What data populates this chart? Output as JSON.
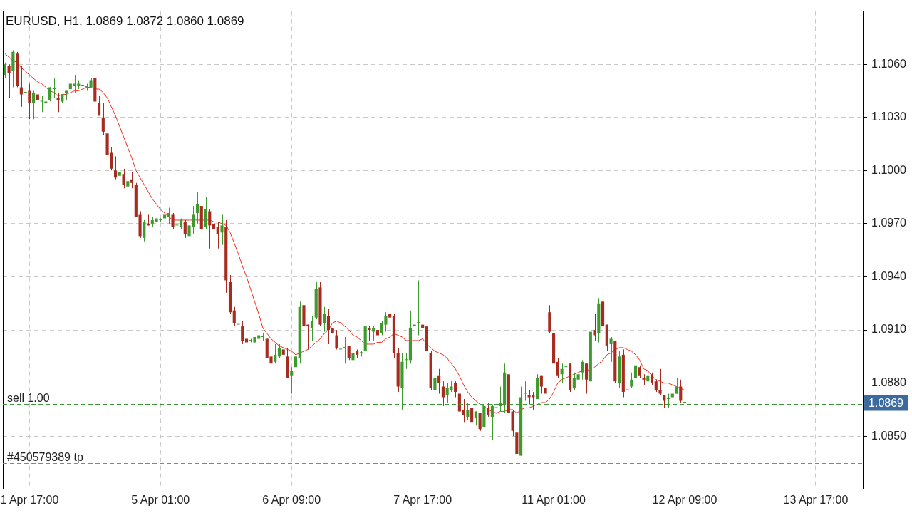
{
  "chart_data": {
    "type": "candlestick",
    "title": "EURUSD, H1, 1.0869 1.0872 1.0860 1.0869",
    "categories": [
      null,
      null,
      null,
      null,
      null,
      null,
      "1 Apr 17:00",
      null,
      null,
      null,
      null,
      null,
      null,
      null,
      null,
      null,
      null,
      null,
      null,
      null,
      null,
      null,
      null,
      null,
      null,
      null,
      null,
      null,
      null,
      null,
      null,
      null,
      null,
      null,
      null,
      null,
      null,
      null,
      "5 Apr 01:00",
      null,
      null,
      null,
      null,
      null,
      null,
      null,
      null,
      null,
      null,
      null,
      null,
      null,
      null,
      null,
      null,
      null,
      null,
      null,
      null,
      null,
      null,
      null,
      null,
      null,
      null,
      null,
      null,
      null,
      null,
      null,
      "6 Apr 09:00",
      null,
      null,
      null,
      null,
      null,
      null,
      null,
      null,
      null,
      null,
      null,
      null,
      null,
      null,
      null,
      null,
      null,
      null,
      null,
      null,
      null,
      null,
      null,
      null,
      null,
      null,
      null,
      null,
      null,
      null,
      null,
      "7 Apr 17:00",
      null,
      null,
      null,
      null,
      null,
      null,
      null,
      null,
      null,
      null,
      null,
      null,
      null,
      null,
      null,
      null,
      null,
      null,
      null,
      null,
      null,
      null,
      null,
      null,
      null,
      null,
      null,
      null,
      null,
      null,
      null,
      "11 Apr 01:00",
      null,
      null,
      null,
      null,
      null,
      null,
      null,
      null,
      null,
      null,
      null,
      null,
      null,
      null,
      null,
      null,
      null,
      null,
      null,
      null,
      null,
      null,
      null,
      null,
      null,
      null,
      null,
      null,
      null,
      null,
      null,
      "12 Apr 09:00",
      null,
      null,
      null,
      null,
      null,
      null,
      null,
      null,
      null,
      null,
      null,
      null,
      null,
      null,
      null,
      null,
      null,
      null,
      null,
      null,
      null,
      null,
      null,
      null,
      null,
      null,
      null,
      null,
      null,
      null,
      null,
      "13 Apr 17:00",
      null,
      null,
      null,
      null,
      null,
      null,
      null,
      null,
      null,
      null,
      null
    ],
    "ohlc": [
      [
        1.1054,
        1.1061,
        1.1052,
        1.106
      ],
      [
        1.1059,
        1.106,
        1.1041,
        1.1055
      ],
      [
        1.1056,
        1.1068,
        1.1047,
        1.1067
      ],
      [
        1.1066,
        1.1067,
        1.1047,
        1.1048
      ],
      [
        1.1047,
        1.1059,
        1.1036,
        1.1043
      ],
      [
        1.1044,
        1.1053,
        1.1038,
        1.1044
      ],
      [
        1.1045,
        1.1049,
        1.1029,
        1.1038
      ],
      [
        1.1038,
        1.1045,
        1.1029,
        1.1044
      ],
      [
        1.1043,
        1.1048,
        1.1038,
        1.104
      ],
      [
        1.1039,
        1.1042,
        1.1033,
        1.1039
      ],
      [
        1.1038,
        1.1048,
        1.1038,
        1.1039
      ],
      [
        1.104,
        1.1047,
        1.1039,
        1.1047
      ],
      [
        1.1046,
        1.1052,
        1.1041,
        1.1046
      ],
      [
        1.1041,
        1.1044,
        1.1033,
        1.104
      ],
      [
        1.1039,
        1.1043,
        1.1038,
        1.1043
      ],
      [
        1.1044,
        1.1045,
        1.104,
        1.1045
      ],
      [
        1.1046,
        1.1053,
        1.1044,
        1.1049
      ],
      [
        1.1048,
        1.1054,
        1.1044,
        1.1049
      ],
      [
        1.1048,
        1.1051,
        1.1046,
        1.1049
      ],
      [
        1.1048,
        1.1053,
        1.1047,
        1.1048
      ],
      [
        1.1047,
        1.1049,
        1.1045,
        1.1048
      ],
      [
        1.1047,
        1.1052,
        1.1047,
        1.1051
      ],
      [
        1.1052,
        1.1054,
        1.1036,
        1.1039
      ],
      [
        1.1038,
        1.1042,
        1.1031,
        1.1031
      ],
      [
        1.103,
        1.1038,
        1.102,
        1.1022
      ],
      [
        1.1021,
        1.1032,
        1.1008,
        1.1009
      ],
      [
        1.101,
        1.1013,
        1.1,
        1.1001
      ],
      [
        1.1,
        1.1008,
        1.0995,
        1.0996
      ],
      [
        1.0997,
        1.1009,
        1.0995,
        1.0999
      ],
      [
        1.0998,
        1.1001,
        1.099,
        1.0992
      ],
      [
        1.0991,
        1.0997,
        1.0979,
        1.0994
      ],
      [
        1.0995,
        1.0999,
        1.099,
        1.0993
      ],
      [
        1.0992,
        1.0993,
        1.0974,
        1.0974
      ],
      [
        1.0975,
        1.0977,
        1.0962,
        1.0963
      ],
      [
        1.0962,
        1.0972,
        1.096,
        1.0971
      ],
      [
        1.097,
        1.0975,
        1.0969,
        1.0969
      ],
      [
        1.097,
        1.0974,
        1.0968,
        1.0972
      ],
      [
        1.0971,
        1.0974,
        1.0971,
        1.0973
      ],
      [
        1.0972,
        1.0973,
        1.0971,
        1.0972
      ],
      [
        1.0973,
        1.0976,
        1.097,
        1.0975
      ],
      [
        1.0974,
        1.0979,
        1.097,
        1.0976
      ],
      [
        1.0975,
        1.0976,
        1.0967,
        1.0968
      ],
      [
        1.0969,
        1.0973,
        1.0965,
        1.0969
      ],
      [
        1.0968,
        1.0973,
        1.0967,
        1.0972
      ],
      [
        1.0971,
        1.0972,
        1.0962,
        1.0964
      ],
      [
        1.0963,
        1.0972,
        1.0962,
        1.0969
      ],
      [
        1.0968,
        1.098,
        1.0964,
        1.0975
      ],
      [
        1.0976,
        1.0988,
        1.097,
        1.0981
      ],
      [
        1.098,
        1.0981,
        1.0962,
        1.0967
      ],
      [
        1.0968,
        1.0985,
        1.0967,
        1.0978
      ],
      [
        1.0977,
        1.0978,
        1.0956,
        1.0969
      ],
      [
        1.097,
        1.0977,
        1.0963,
        1.0967
      ],
      [
        1.0968,
        1.0971,
        1.0956,
        1.0964
      ],
      [
        1.0965,
        1.0975,
        1.0958,
        1.0969
      ],
      [
        1.0968,
        1.0972,
        1.0931,
        1.0938
      ],
      [
        1.0937,
        1.0941,
        1.0919,
        1.092
      ],
      [
        1.0921,
        1.0923,
        1.0912,
        1.0914
      ],
      [
        1.0913,
        1.0921,
        1.0911,
        1.0913
      ],
      [
        1.0912,
        1.0915,
        1.0902,
        1.0904
      ],
      [
        1.0905,
        1.0905,
        1.0899,
        1.0903
      ],
      [
        1.0904,
        1.0905,
        1.0903,
        1.0904
      ],
      [
        1.0903,
        1.0906,
        1.0903,
        1.0906
      ],
      [
        1.0905,
        1.0908,
        1.0904,
        1.0907
      ],
      [
        1.0906,
        1.0908,
        1.0904,
        1.0906
      ],
      [
        1.0905,
        1.0905,
        1.0894,
        1.0894
      ],
      [
        1.0895,
        1.0896,
        1.089,
        1.0891
      ],
      [
        1.0892,
        1.0902,
        1.0891,
        1.0896
      ],
      [
        1.0895,
        1.0902,
        1.0894,
        1.09
      ],
      [
        1.0899,
        1.09,
        1.0893,
        1.0896
      ],
      [
        1.0895,
        1.09,
        1.0883,
        1.0883
      ],
      [
        1.0884,
        1.0889,
        1.0874,
        1.0887
      ],
      [
        1.0889,
        1.0902,
        1.0883,
        1.0895
      ],
      [
        1.0894,
        1.0926,
        1.0891,
        1.0923
      ],
      [
        1.0924,
        1.0925,
        1.0906,
        1.0912
      ],
      [
        1.0913,
        1.0913,
        1.0899,
        1.0912
      ],
      [
        1.0911,
        1.0918,
        1.0904,
        1.0915
      ],
      [
        1.0917,
        1.0937,
        1.0916,
        1.0933
      ],
      [
        1.0934,
        1.0937,
        1.0912,
        1.0913
      ],
      [
        1.0914,
        1.0923,
        1.0909,
        1.0919
      ],
      [
        1.0918,
        1.0922,
        1.0902,
        1.091
      ],
      [
        1.0911,
        1.0914,
        1.0902,
        1.0908
      ],
      [
        1.0907,
        1.091,
        1.0899,
        1.09
      ],
      [
        1.0899,
        1.0927,
        1.0879,
        1.0899
      ],
      [
        1.09,
        1.0906,
        1.0891,
        1.09
      ],
      [
        1.0901,
        1.0901,
        1.0893,
        1.0894
      ],
      [
        1.0893,
        1.0899,
        1.0891,
        1.0897
      ],
      [
        1.0898,
        1.0899,
        1.0894,
        1.0896
      ],
      [
        1.0897,
        1.0898,
        1.0895,
        1.0897
      ],
      [
        1.0898,
        1.0912,
        1.0896,
        1.0912
      ],
      [
        1.0911,
        1.0912,
        1.0904,
        1.091
      ],
      [
        1.0909,
        1.0912,
        1.0904,
        1.0911
      ],
      [
        1.091,
        1.0912,
        1.0905,
        1.0907
      ],
      [
        1.0908,
        1.0915,
        1.0907,
        1.0914
      ],
      [
        1.0913,
        1.092,
        1.0909,
        1.0918
      ],
      [
        1.0919,
        1.0934,
        1.0912,
        1.0917
      ],
      [
        1.0918,
        1.0919,
        1.0894,
        1.0897
      ],
      [
        1.0897,
        1.09,
        1.0875,
        1.0878
      ],
      [
        1.0877,
        1.0897,
        1.0865,
        1.0892
      ],
      [
        1.0893,
        1.0897,
        1.0888,
        1.0893
      ],
      [
        1.0893,
        1.0921,
        1.0891,
        1.0911
      ],
      [
        1.0912,
        1.0926,
        1.0908,
        1.0913
      ],
      [
        1.0914,
        1.0938,
        1.0907,
        1.0914
      ],
      [
        1.0913,
        1.0923,
        1.0895,
        1.0911
      ],
      [
        1.0912,
        1.0915,
        1.0895,
        1.0898
      ],
      [
        1.0897,
        1.0898,
        1.0876,
        1.0877
      ],
      [
        1.0876,
        1.0892,
        1.0875,
        1.0883
      ],
      [
        1.0884,
        1.0888,
        1.0874,
        1.088
      ],
      [
        1.0878,
        1.0881,
        1.0867,
        1.0872
      ],
      [
        1.0873,
        1.088,
        1.0869,
        1.0877
      ],
      [
        1.0876,
        1.0881,
        1.0875,
        1.0878
      ],
      [
        1.088,
        1.0881,
        1.0872,
        1.0875
      ],
      [
        1.0874,
        1.0875,
        1.086,
        1.0864
      ],
      [
        1.0865,
        1.0871,
        1.0858,
        1.0862
      ],
      [
        1.0861,
        1.0869,
        1.0859,
        1.0865
      ],
      [
        1.0866,
        1.0868,
        1.0857,
        1.0858
      ],
      [
        1.086,
        1.0864,
        1.0856,
        1.0864
      ],
      [
        1.0863,
        1.0863,
        1.0853,
        1.0854
      ],
      [
        1.0855,
        1.0867,
        1.0855,
        1.0867
      ],
      [
        1.0866,
        1.0869,
        1.0861,
        1.0862
      ],
      [
        1.0861,
        1.0868,
        1.0848,
        1.0867
      ],
      [
        1.0866,
        1.0878,
        1.086,
        1.0866
      ],
      [
        1.0867,
        1.0878,
        1.0864,
        1.0869
      ],
      [
        1.0868,
        1.0891,
        1.0863,
        1.0886
      ],
      [
        1.0885,
        1.0885,
        1.0859,
        1.0863
      ],
      [
        1.0864,
        1.0865,
        1.085,
        1.0853
      ],
      [
        1.0852,
        1.0857,
        1.0836,
        1.084
      ],
      [
        1.0839,
        1.0878,
        1.0839,
        1.0872
      ],
      [
        1.0874,
        1.0881,
        1.087,
        1.0874
      ],
      [
        1.0873,
        1.0876,
        1.0868,
        1.0872
      ],
      [
        1.0873,
        1.0875,
        1.0865,
        1.0872
      ],
      [
        1.0871,
        1.0885,
        1.0871,
        1.0883
      ],
      [
        1.0884,
        1.0884,
        1.0874,
        1.0878
      ],
      [
        1.0877,
        1.0879,
        1.0873,
        1.0874
      ],
      [
        1.092,
        1.0924,
        1.0908,
        1.0909
      ],
      [
        1.0908,
        1.0912,
        1.0886,
        1.0891
      ],
      [
        1.0892,
        1.0894,
        1.0883,
        1.0884
      ],
      [
        1.0885,
        1.0891,
        1.088,
        1.0888
      ],
      [
        1.0889,
        1.0893,
        1.0885,
        1.0889
      ],
      [
        1.0891,
        1.0891,
        1.0875,
        1.0876
      ],
      [
        1.0877,
        1.0886,
        1.0876,
        1.0883
      ],
      [
        1.0882,
        1.0887,
        1.0879,
        1.0885
      ],
      [
        1.0886,
        1.0893,
        1.0882,
        1.0892
      ],
      [
        1.0891,
        1.0891,
        1.0874,
        1.0882
      ],
      [
        1.0881,
        1.0913,
        1.0877,
        1.0909
      ],
      [
        1.091,
        1.0919,
        1.0904,
        1.0907
      ],
      [
        1.0908,
        1.0928,
        1.0903,
        1.0925
      ],
      [
        1.0926,
        1.0933,
        1.0905,
        1.0912
      ],
      [
        1.0913,
        1.0913,
        1.0898,
        1.0901
      ],
      [
        1.0902,
        1.0906,
        1.0892,
        1.0905
      ],
      [
        1.0904,
        1.0904,
        1.088,
        1.0881
      ],
      [
        1.088,
        1.0898,
        1.0877,
        1.0895
      ],
      [
        1.0896,
        1.0899,
        1.0872,
        1.0875
      ],
      [
        1.0876,
        1.0885,
        1.0872,
        1.0876
      ],
      [
        1.0878,
        1.0886,
        1.0877,
        1.0882
      ],
      [
        1.0883,
        1.0894,
        1.088,
        1.089
      ],
      [
        1.0889,
        1.089,
        1.0883,
        1.0884
      ],
      [
        1.0883,
        1.0885,
        1.0879,
        1.0882
      ],
      [
        1.0881,
        1.0886,
        1.088,
        1.0884
      ],
      [
        1.0885,
        1.0886,
        1.0879,
        1.088
      ],
      [
        1.0881,
        1.0882,
        1.0875,
        1.0876
      ],
      [
        1.0876,
        1.0888,
        1.0873,
        1.0874
      ],
      [
        1.0873,
        1.0873,
        1.0866,
        1.087
      ],
      [
        1.0871,
        1.0874,
        1.0866,
        1.0871
      ],
      [
        1.0872,
        1.0876,
        1.0871,
        1.0874
      ],
      [
        1.0874,
        1.0883,
        1.0874,
        1.0878
      ],
      [
        1.0878,
        1.0882,
        1.0869,
        1.087
      ],
      [
        1.0869,
        1.0872,
        1.086,
        1.0869
      ],
      null,
      null,
      null,
      null,
      null,
      null,
      null,
      null,
      null,
      null,
      null,
      null,
      null,
      null,
      null,
      null,
      null,
      null,
      null,
      null,
      null,
      null,
      null,
      null,
      null,
      null,
      null,
      null,
      null,
      null,
      null,
      null,
      null,
      null,
      null,
      null,
      null,
      null,
      null,
      null,
      null,
      null,
      null
    ],
    "colors": [
      "#3c9b2c",
      "#a82b1f",
      "#3c9b2c",
      "#a82b1f",
      "#a82b1f",
      "#3c9b2c",
      "#a82b1f",
      "#3c9b2c",
      "#a82b1f",
      "#3c9b2c",
      "#3c9b2c",
      "#3c9b2c",
      "#3c9b2c",
      "#a82b1f",
      "#3c9b2c",
      "#3c9b2c",
      "#3c9b2c",
      "#3c9b2c",
      "#3c9b2c",
      "#3c9b2c",
      "#3c9b2c",
      "#3c9b2c",
      "#a82b1f",
      "#a82b1f",
      "#a82b1f",
      "#a82b1f",
      "#a82b1f",
      "#a82b1f",
      "#3c9b2c",
      "#a82b1f",
      "#3c9b2c",
      "#a82b1f",
      "#a82b1f",
      "#a82b1f",
      "#3c9b2c",
      "#a82b1f",
      "#3c9b2c",
      "#3c9b2c",
      "#3c9b2c",
      "#3c9b2c",
      "#3c9b2c",
      "#a82b1f",
      "#3c9b2c",
      "#3c9b2c",
      "#a82b1f",
      "#3c9b2c",
      "#3c9b2c",
      "#3c9b2c",
      "#a82b1f",
      "#3c9b2c",
      "#a82b1f",
      "#a82b1f",
      "#a82b1f",
      "#3c9b2c",
      "#a82b1f",
      "#a82b1f",
      "#a82b1f",
      "#3c9b2c",
      "#a82b1f",
      "#a82b1f",
      "#3c9b2c",
      "#3c9b2c",
      "#3c9b2c",
      "#3c9b2c",
      "#a82b1f",
      "#a82b1f",
      "#3c9b2c",
      "#3c9b2c",
      "#a82b1f",
      "#a82b1f",
      "#3c9b2c",
      "#3c9b2c",
      "#3c9b2c",
      "#a82b1f",
      "#a82b1f",
      "#3c9b2c",
      "#3c9b2c",
      "#a82b1f",
      "#3c9b2c",
      "#a82b1f",
      "#a82b1f",
      "#a82b1f",
      "#3c9b2c",
      "#3c9b2c",
      "#a82b1f",
      "#3c9b2c",
      "#a82b1f",
      "#3c9b2c",
      "#3c9b2c",
      "#a82b1f",
      "#3c9b2c",
      "#a82b1f",
      "#3c9b2c",
      "#3c9b2c",
      "#a82b1f",
      "#a82b1f",
      "#a82b1f",
      "#3c9b2c",
      "#3c9b2c",
      "#3c9b2c",
      "#3c9b2c",
      "#3c9b2c",
      "#a82b1f",
      "#a82b1f",
      "#a82b1f",
      "#3c9b2c",
      "#a82b1f",
      "#a82b1f",
      "#3c9b2c",
      "#3c9b2c",
      "#a82b1f",
      "#a82b1f",
      "#a82b1f",
      "#3c9b2c",
      "#a82b1f",
      "#3c9b2c",
      "#a82b1f",
      "#3c9b2c",
      "#a82b1f",
      "#3c9b2c",
      "#3c9b2c",
      "#3c9b2c",
      "#3c9b2c",
      "#a82b1f",
      "#a82b1f",
      "#a82b1f",
      "#3c9b2c",
      "#3c9b2c",
      "#a82b1f",
      "#a82b1f",
      "#3c9b2c",
      "#a82b1f",
      "#a82b1f",
      "#a82b1f",
      "#a82b1f",
      "#a82b1f",
      "#3c9b2c",
      "#3c9b2c",
      "#a82b1f",
      "#3c9b2c",
      "#3c9b2c",
      "#3c9b2c",
      "#a82b1f",
      "#3c9b2c",
      "#a82b1f",
      "#3c9b2c",
      "#a82b1f",
      "#a82b1f",
      "#3c9b2c",
      "#a82b1f",
      "#3c9b2c",
      "#a82b1f",
      "#3c9b2c",
      "#3c9b2c",
      "#3c9b2c",
      "#a82b1f",
      "#a82b1f",
      "#3c9b2c",
      "#a82b1f",
      "#a82b1f",
      "#a82b1f",
      "#a82b1f",
      "#3c9b2c",
      "#3c9b2c",
      "#3c9b2c",
      "#a82b1f",
      "#3c9b2c",
      null,
      null,
      null,
      null,
      null,
      null,
      null,
      null,
      null,
      null,
      null,
      null,
      null,
      null,
      null,
      null,
      null,
      null,
      null,
      null,
      null,
      null,
      null,
      null,
      null,
      null,
      null,
      null,
      null,
      null,
      null,
      null,
      null,
      null,
      null,
      null,
      null,
      null,
      null,
      null,
      null,
      null,
      null
    ],
    "series": [
      {
        "type": "line",
        "color": "#ff2a1a",
        "values": [
          1.1066,
          1.1064,
          1.1062,
          1.1061,
          1.1058,
          1.1056,
          1.1054,
          1.1052,
          1.105,
          1.1049,
          1.1047,
          1.1045,
          1.1044,
          1.1042,
          1.1043,
          1.1043,
          1.1044,
          1.1045,
          1.1045,
          1.1046,
          1.1047,
          1.1047,
          1.1046,
          1.1046,
          1.1044,
          1.1041,
          1.1036,
          1.1031,
          1.1025,
          1.1019,
          1.1013,
          1.1007,
          1.1,
          1.0996,
          1.0992,
          1.0988,
          1.0984,
          1.0981,
          1.0978,
          1.0976,
          1.0974,
          1.0972,
          1.0972,
          1.0972,
          1.0972,
          1.0972,
          1.0972,
          1.0972,
          1.0972,
          1.0972,
          1.0972,
          1.0971,
          1.0971,
          1.097,
          1.0969,
          1.0965,
          1.0959,
          1.0953,
          1.0946,
          1.094,
          1.0933,
          1.0926,
          1.0919,
          1.0911,
          1.0908,
          1.0905,
          1.0903,
          1.0901,
          1.09,
          1.0899,
          1.0898,
          1.0896,
          1.0897,
          1.0898,
          1.0899,
          1.0901,
          1.0903,
          1.0905,
          1.0908,
          1.091,
          1.0914,
          1.0915,
          1.0914,
          1.0912,
          1.091,
          1.0907,
          1.0906,
          1.0904,
          1.0902,
          1.0902,
          1.0902,
          1.0903,
          1.0903,
          1.0905,
          1.0906,
          1.0908,
          1.0907,
          1.0906,
          1.0904,
          1.0904,
          1.0904,
          1.0904,
          1.0905,
          1.0902,
          1.09,
          1.0898,
          1.0897,
          1.0896,
          1.0894,
          1.0891,
          1.0888,
          1.0884,
          1.0879,
          1.0875,
          1.0872,
          1.087,
          1.0868,
          1.0867,
          1.0865,
          1.0864,
          1.0863,
          1.0864,
          1.0864,
          1.0865,
          1.0865,
          1.0863,
          1.0865,
          1.0866,
          1.0866,
          1.0867,
          1.0868,
          1.0869,
          1.0869,
          1.0871,
          1.0875,
          1.088,
          1.0882,
          1.0883,
          1.0884,
          1.0885,
          1.0886,
          1.0887,
          1.0887,
          1.0888,
          1.0889,
          1.0891,
          1.0893,
          1.0896,
          1.0897,
          1.0899,
          1.09,
          1.09,
          1.0899,
          1.0898,
          1.0896,
          1.0893,
          1.0888,
          1.0887,
          1.0884,
          1.0882,
          1.0881,
          1.088,
          1.088,
          1.0879,
          1.0878,
          1.0877,
          1.0876,
          null,
          null,
          null,
          null,
          null,
          null,
          null,
          null,
          null,
          null,
          null,
          null,
          null,
          null,
          null,
          null,
          null,
          null,
          null,
          null,
          null,
          null,
          null,
          null,
          null,
          null,
          null,
          null,
          null,
          null,
          null,
          null,
          null,
          null,
          null,
          null,
          null,
          null,
          null,
          null,
          null,
          null,
          null
        ]
      }
    ],
    "ylim": [
      1.082,
      1.109
    ],
    "yticks": [
      {
        "value": 1.085,
        "label": "1.0850"
      },
      {
        "value": 1.088,
        "label": "1.0880"
      },
      {
        "value": 1.091,
        "label": "1.0910"
      },
      {
        "value": 1.094,
        "label": "1.0940"
      },
      {
        "value": 1.097,
        "label": "1.0970"
      },
      {
        "value": 1.1,
        "label": "1.1000"
      },
      {
        "value": 1.103,
        "label": "1.1030"
      },
      {
        "value": 1.106,
        "label": "1.1060"
      }
    ],
    "grid": true,
    "legend": false,
    "marker": "none",
    "ref_lines": [
      {
        "axis": "y",
        "value": 1.0869,
        "label": "1.0869",
        "color": "#3d6a9e",
        "line_style": "solid"
      },
      {
        "axis": "y",
        "value": 1.0868,
        "label": "sell 1.00",
        "color": "#3a9a3a",
        "line_style": "dashed"
      },
      {
        "axis": "y",
        "value": 1.0835,
        "label": "#450579389 tp",
        "color": "#e0604a",
        "line_style": "dashed"
      }
    ]
  }
}
